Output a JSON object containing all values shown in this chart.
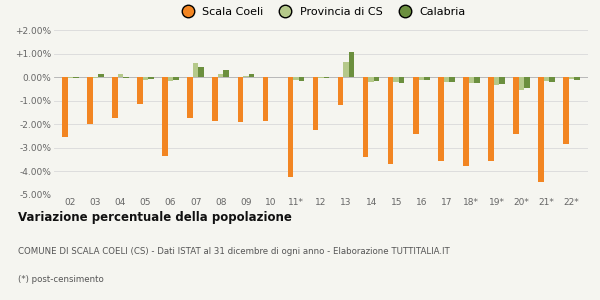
{
  "years": [
    "02",
    "03",
    "04",
    "05",
    "06",
    "07",
    "08",
    "09",
    "10",
    "11*",
    "12",
    "13",
    "14",
    "15",
    "16",
    "17",
    "18*",
    "19*",
    "20*",
    "21*",
    "22*"
  ],
  "scala_coeli": [
    -2.55,
    -1.98,
    -1.75,
    -1.12,
    -3.35,
    -1.75,
    -1.85,
    -1.9,
    -1.85,
    -4.25,
    -2.25,
    -1.2,
    -3.4,
    -3.7,
    -2.4,
    -3.55,
    -3.75,
    -3.55,
    -2.4,
    -4.45,
    -2.85
  ],
  "provincia_cs": [
    -0.05,
    -0.05,
    0.15,
    -0.1,
    -0.15,
    0.6,
    0.15,
    0.05,
    0.02,
    -0.1,
    -0.02,
    0.65,
    -0.2,
    -0.2,
    -0.1,
    -0.2,
    -0.25,
    -0.35,
    -0.55,
    -0.15,
    -0.08
  ],
  "calabria": [
    -0.05,
    0.12,
    -0.05,
    -0.08,
    -0.12,
    0.45,
    0.3,
    0.15,
    0.02,
    -0.15,
    -0.05,
    1.05,
    -0.15,
    -0.25,
    -0.12,
    -0.2,
    -0.25,
    -0.3,
    -0.45,
    -0.2,
    -0.1
  ],
  "scala_coeli_color": "#f28522",
  "provincia_cs_color": "#b5c98a",
  "calabria_color": "#6b8f3e",
  "background_color": "#f5f5f0",
  "grid_color": "#dddddd",
  "ylim": [
    -5.0,
    2.0
  ],
  "yticks": [
    -5.0,
    -4.0,
    -3.0,
    -2.0,
    -1.0,
    0.0,
    1.0,
    2.0
  ],
  "title": "Variazione percentuale della popolazione",
  "subtitle": "COMUNE DI SCALA COELI (CS) - Dati ISTAT al 31 dicembre di ogni anno - Elaborazione TUTTITALIA.IT",
  "footnote": "(*) post-censimento",
  "legend_labels": [
    "Scala Coeli",
    "Provincia di CS",
    "Calabria"
  ]
}
